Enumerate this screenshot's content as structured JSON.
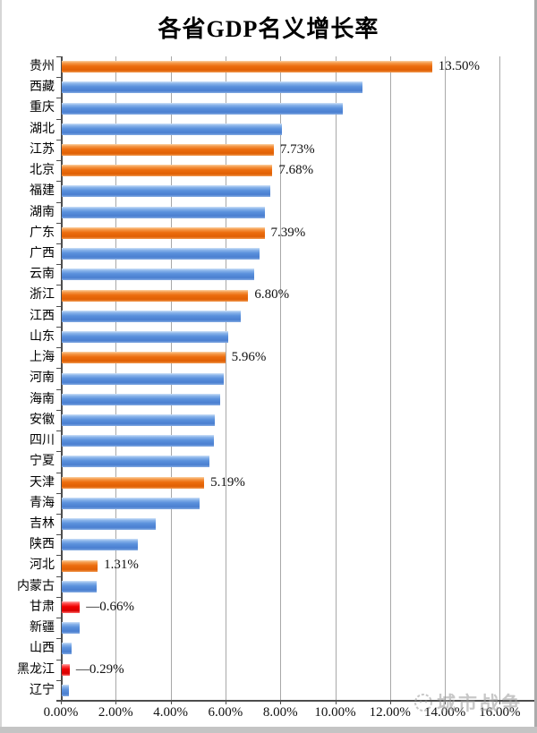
{
  "chart_data": {
    "type": "bar",
    "orientation": "horizontal",
    "title": "各省GDP名义增长率",
    "xlabel": "",
    "ylabel": "",
    "xlim": [
      0,
      16
    ],
    "grid": "vertical",
    "legend": "none",
    "x_ticks": [
      {
        "value": 0,
        "label": "0.00%"
      },
      {
        "value": 2,
        "label": "2.00%"
      },
      {
        "value": 4,
        "label": "4.00%"
      },
      {
        "value": 6,
        "label": "6.00%"
      },
      {
        "value": 8,
        "label": "8.00%"
      },
      {
        "value": 10,
        "label": "10.00%"
      },
      {
        "value": 12,
        "label": "12.00%"
      },
      {
        "value": 14,
        "label": "14.00%"
      },
      {
        "value": 16,
        "label": "16.00%"
      }
    ],
    "note": "negative values are drawn as bars of absolute length in red",
    "rows": [
      {
        "category": "贵州",
        "value": 13.5,
        "color": "orange",
        "data_label": "13.50%"
      },
      {
        "category": "西藏",
        "value": 10.97,
        "color": "blue",
        "data_label": ""
      },
      {
        "category": "重庆",
        "value": 10.25,
        "color": "blue",
        "data_label": ""
      },
      {
        "category": "湖北",
        "value": 8.01,
        "color": "blue",
        "data_label": ""
      },
      {
        "category": "江苏",
        "value": 7.73,
        "color": "orange",
        "data_label": "7.73%"
      },
      {
        "category": "北京",
        "value": 7.68,
        "color": "orange",
        "data_label": "7.68%"
      },
      {
        "category": "福建",
        "value": 7.61,
        "color": "blue",
        "data_label": ""
      },
      {
        "category": "湖南",
        "value": 7.41,
        "color": "blue",
        "data_label": ""
      },
      {
        "category": "广东",
        "value": 7.39,
        "color": "orange",
        "data_label": "7.39%"
      },
      {
        "category": "广西",
        "value": 7.22,
        "color": "blue",
        "data_label": ""
      },
      {
        "category": "云南",
        "value": 7.02,
        "color": "blue",
        "data_label": ""
      },
      {
        "category": "浙江",
        "value": 6.8,
        "color": "orange",
        "data_label": "6.80%"
      },
      {
        "category": "江西",
        "value": 6.52,
        "color": "blue",
        "data_label": ""
      },
      {
        "category": "山东",
        "value": 6.07,
        "color": "blue",
        "data_label": ""
      },
      {
        "category": "上海",
        "value": 5.96,
        "color": "orange",
        "data_label": "5.96%"
      },
      {
        "category": "河南",
        "value": 5.92,
        "color": "blue",
        "data_label": ""
      },
      {
        "category": "海南",
        "value": 5.78,
        "color": "blue",
        "data_label": ""
      },
      {
        "category": "安徽",
        "value": 5.58,
        "color": "blue",
        "data_label": ""
      },
      {
        "category": "四川",
        "value": 5.54,
        "color": "blue",
        "data_label": ""
      },
      {
        "category": "宁夏",
        "value": 5.38,
        "color": "blue",
        "data_label": ""
      },
      {
        "category": "天津",
        "value": 5.19,
        "color": "orange",
        "data_label": "5.19%"
      },
      {
        "category": "青海",
        "value": 5.02,
        "color": "blue",
        "data_label": ""
      },
      {
        "category": "吉林",
        "value": 3.41,
        "color": "blue",
        "data_label": ""
      },
      {
        "category": "陕西",
        "value": 2.76,
        "color": "blue",
        "data_label": ""
      },
      {
        "category": "河北",
        "value": 1.31,
        "color": "orange",
        "data_label": "1.31%"
      },
      {
        "category": "内蒙古",
        "value": 1.28,
        "color": "blue",
        "data_label": ""
      },
      {
        "category": "甘肃",
        "value": -0.66,
        "color": "red",
        "data_label": "—0.66%"
      },
      {
        "category": "新疆",
        "value": 0.64,
        "color": "blue",
        "data_label": ""
      },
      {
        "category": "山西",
        "value": 0.36,
        "color": "blue",
        "data_label": ""
      },
      {
        "category": "黑龙江",
        "value": -0.29,
        "color": "red",
        "data_label": "—0.29%"
      },
      {
        "category": "辽宁",
        "value": 0.26,
        "color": "blue",
        "data_label": ""
      }
    ]
  },
  "colors": {
    "blue": "#5a90dc",
    "orange": "#ec6d0e",
    "red": "#ef0000",
    "gridline": "#a8a8a8",
    "axis": "#4d4d4d"
  },
  "watermark": {
    "logo": "city-war-logo",
    "text": "城市战争"
  }
}
